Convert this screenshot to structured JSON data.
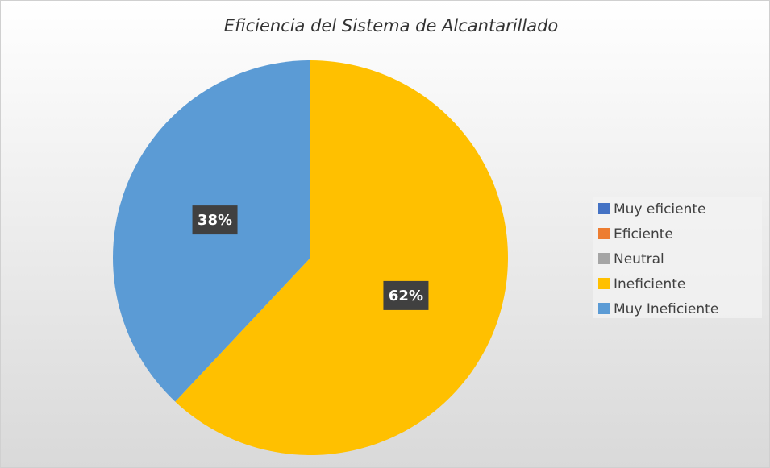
{
  "chart_data": {
    "type": "pie",
    "title": "Eficiencia del Sistema de Alcantarillado",
    "categories": [
      "Muy eficiente",
      "Eficiente",
      "Neutral",
      "Ineficiente",
      "Muy Ineficiente"
    ],
    "values": [
      0,
      0,
      0,
      62,
      38
    ],
    "value_labels": [
      null,
      null,
      null,
      "62%",
      "38%"
    ],
    "colors": [
      "#4472c4",
      "#ed7d31",
      "#a5a5a5",
      "#ffc000",
      "#5b9bd5"
    ],
    "legend": "right"
  }
}
